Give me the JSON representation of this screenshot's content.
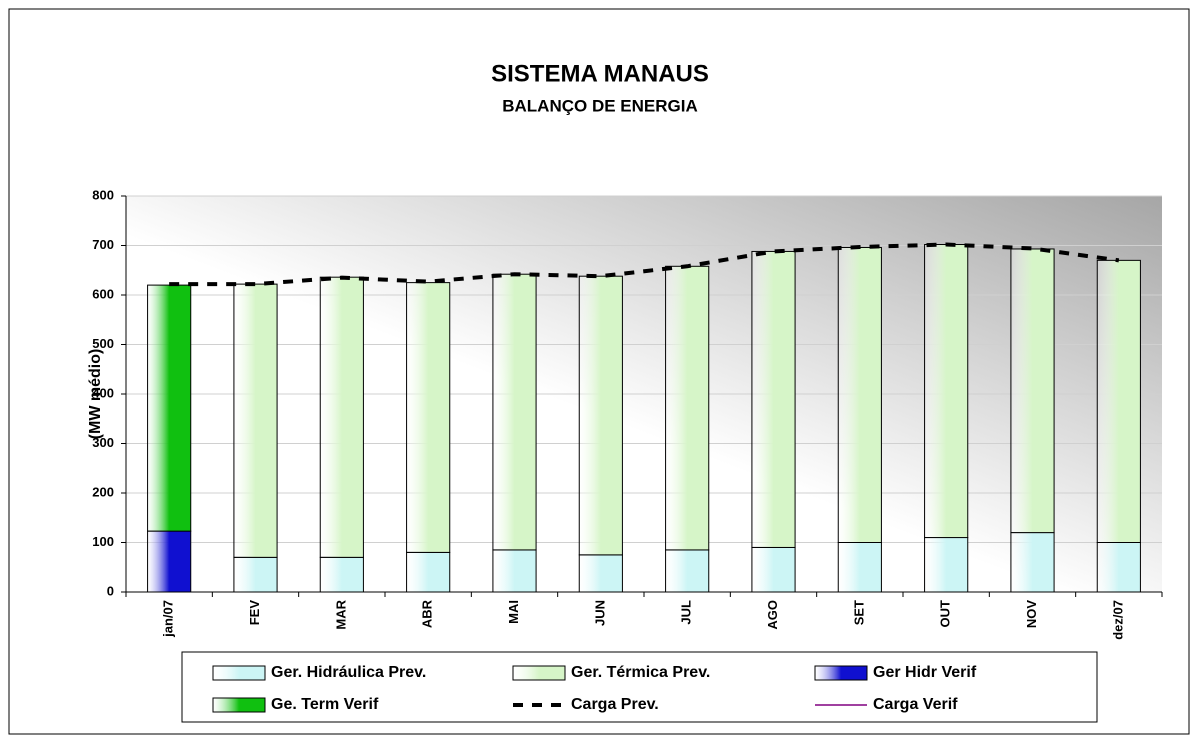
{
  "chart_data": {
    "type": "bar",
    "title": "SISTEMA MANAUS",
    "subtitle": "BALANÇO DE ENERGIA",
    "ylabel": "(MW médio)",
    "categories": [
      "jan/07",
      "FEV",
      "MAR",
      "ABR",
      "MAI",
      "JUN",
      "JUL",
      "AGO",
      "SET",
      "OUT",
      "NOV",
      "dez/07"
    ],
    "series": [
      {
        "name": "Ger. Hidráulica Prev.",
        "type": "bar",
        "color": "#ccf5f5",
        "values": [
          null,
          70,
          70,
          80,
          85,
          75,
          85,
          90,
          100,
          110,
          120,
          100
        ]
      },
      {
        "name": "Ger. Térmica Prev.",
        "type": "bar",
        "color": "#d6f5c8",
        "values": [
          null,
          552,
          566,
          545,
          557,
          563,
          573,
          598,
          596,
          592,
          573,
          570
        ]
      },
      {
        "name": "Ger Hidr Verif",
        "type": "bar",
        "color": "#1010d0",
        "values": [
          123,
          null,
          null,
          null,
          null,
          null,
          null,
          null,
          null,
          null,
          null,
          null
        ]
      },
      {
        "name": "Ge. Term Verif",
        "type": "bar",
        "color": "#10c010",
        "values": [
          497,
          null,
          null,
          null,
          null,
          null,
          null,
          null,
          null,
          null,
          null,
          null
        ]
      },
      {
        "name": "Carga Prev.",
        "type": "line",
        "dashed": true,
        "color": "#000000",
        "values": [
          622,
          622,
          635,
          627,
          642,
          638,
          658,
          688,
          697,
          702,
          694,
          670
        ]
      },
      {
        "name": "Carga Verif",
        "type": "line",
        "dashed": false,
        "color": "#800080",
        "values": [
          null,
          null,
          null,
          null,
          null,
          null,
          null,
          null,
          null,
          null,
          null,
          null
        ]
      }
    ],
    "ylim": [
      0,
      800
    ],
    "yticks": [
      0,
      100,
      200,
      300,
      400,
      500,
      600,
      700,
      800
    ],
    "grid": true
  }
}
